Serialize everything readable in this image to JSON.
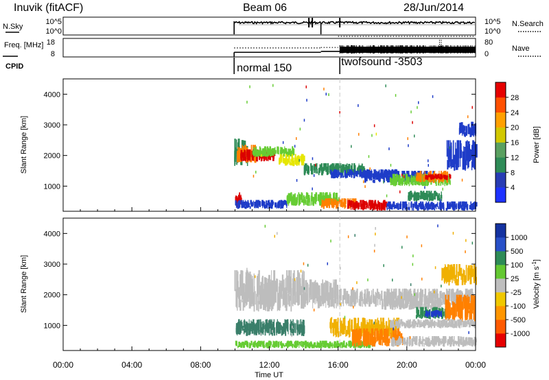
{
  "header": {
    "station": "Inuvik (fitACF)",
    "beam": "Beam 06",
    "date": "28/Jun/2014"
  },
  "colors": {
    "red": "#dc0000",
    "orange": "#ff8000",
    "amber": "#f0b000",
    "yellow": "#e6e600",
    "lightgreen": "#66cc33",
    "green": "#2e8b57",
    "teal": "#3a7f6a",
    "blue": "#1e3cc8",
    "navy": "#0a0aa8",
    "gray": "#bdbdbd"
  },
  "chart_data": [
    {
      "type": "line",
      "panel": "nsky",
      "ylabel": "N.Sky",
      "right_label": "N.Search",
      "y_ticks_left": [
        "10^5",
        "10^0"
      ],
      "y_ticks_right": [
        "10^5",
        "10^0"
      ],
      "xlim": [
        0,
        24
      ],
      "start_hour": 9.95,
      "end_hour": 24,
      "spikes_hours": [
        14.3,
        14.5,
        16.1
      ],
      "gap_hour": 15.0
    },
    {
      "type": "line",
      "panel": "freq",
      "ylabel": "Freq. [MHz]",
      "right_label": "Nave",
      "y_ticks_left": [
        "18",
        "8"
      ],
      "y_ticks_right": [
        "80",
        "0"
      ],
      "xlim": [
        0,
        24
      ],
      "freq_segments": [
        {
          "start": 9.95,
          "end": 15.0,
          "value": 10.5
        },
        {
          "start": 15.0,
          "end": 16.1,
          "value": 11.0
        },
        {
          "start": 16.1,
          "end": 24.0,
          "value": 10.5
        }
      ],
      "nave_segments": [
        {
          "start": 9.95,
          "end": 15.0,
          "value": 30
        },
        {
          "start": 15.0,
          "end": 16.0,
          "value": 32
        },
        {
          "start": 16.0,
          "end": 24.0,
          "value": 80
        }
      ],
      "dense_from_hour": 16.1
    },
    {
      "type": "table",
      "panel": "cpid",
      "label": "CPID",
      "programs": [
        {
          "name": "normal 150",
          "start_hour": 9.95
        },
        {
          "name": "twofsound -3503",
          "start_hour": 16.1
        }
      ],
      "divider_hour": 15.0
    },
    {
      "type": "heatmap",
      "panel": "power",
      "ylabel": "Slant Range [km]",
      "xlim": [
        0,
        24
      ],
      "ylim": [
        180,
        4500
      ],
      "y_ticks": [
        1000,
        2000,
        3000,
        4000
      ],
      "colorbar": {
        "label": "Power [dB]",
        "ticks": [
          "28",
          "24",
          "20",
          "16",
          "12",
          "8",
          "4"
        ],
        "colors": [
          "#1e32ff",
          "#283cb4",
          "#2e8b57",
          "#5aa060",
          "#d2c800",
          "#ffa000",
          "#ff5000",
          "#e60000"
        ]
      },
      "blobs": [
        {
          "t0": 9.95,
          "t1": 10.7,
          "r0": 1650,
          "r1": 2550,
          "c": "#2e8b57"
        },
        {
          "t0": 10.1,
          "t1": 11.2,
          "r0": 1750,
          "r1": 2350,
          "c": "#ff8000"
        },
        {
          "t0": 10.3,
          "t1": 12.3,
          "r0": 1800,
          "r1": 2200,
          "c": "#dc0000"
        },
        {
          "t0": 11.0,
          "t1": 13.5,
          "r0": 1950,
          "r1": 2300,
          "c": "#66cc33"
        },
        {
          "t0": 12.5,
          "t1": 14.0,
          "r0": 1650,
          "r1": 2050,
          "c": "#e6e600"
        },
        {
          "t0": 14.0,
          "t1": 17.5,
          "r0": 1350,
          "r1": 1750,
          "c": "#2e8b57"
        },
        {
          "t0": 15.5,
          "t1": 19.5,
          "r0": 1250,
          "r1": 1550,
          "c": "#1e3cc8"
        },
        {
          "t0": 17.5,
          "t1": 21.5,
          "r0": 1100,
          "r1": 1500,
          "c": "#1e3cc8"
        },
        {
          "t0": 19.0,
          "t1": 22.5,
          "r0": 1000,
          "r1": 1400,
          "c": "#66cc33"
        },
        {
          "t0": 20.5,
          "t1": 22.5,
          "r0": 1100,
          "r1": 1500,
          "c": "#ff8000"
        },
        {
          "t0": 21.0,
          "t1": 22.5,
          "r0": 1200,
          "r1": 1400,
          "c": "#dc0000"
        },
        {
          "t0": 22.3,
          "t1": 24.0,
          "r0": 1500,
          "r1": 2500,
          "c": "#1e3cc8"
        },
        {
          "t0": 23.0,
          "t1": 24.0,
          "r0": 2600,
          "r1": 3100,
          "c": "#1e3cc8"
        },
        {
          "t0": 9.95,
          "t1": 10.4,
          "r0": 250,
          "r1": 800,
          "c": "#dc0000"
        },
        {
          "t0": 10.0,
          "t1": 13.0,
          "r0": 250,
          "r1": 550,
          "c": "#1e3cc8"
        },
        {
          "t0": 13.0,
          "t1": 16.0,
          "r0": 350,
          "r1": 800,
          "c": "#66cc33"
        },
        {
          "t0": 15.0,
          "t1": 17.0,
          "r0": 250,
          "r1": 600,
          "c": "#ff8000"
        },
        {
          "t0": 16.5,
          "t1": 18.8,
          "r0": 200,
          "r1": 550,
          "c": "#dc0000"
        },
        {
          "t0": 18.8,
          "t1": 24.0,
          "r0": 200,
          "r1": 500,
          "c": "#1e3cc8"
        },
        {
          "t0": 20.0,
          "t1": 22.0,
          "r0": 500,
          "r1": 850,
          "c": "#2e8b57"
        }
      ]
    },
    {
      "type": "heatmap",
      "panel": "velocity",
      "ylabel": "Slant Range [km]",
      "xlabel": "Time UT",
      "xlim": [
        0,
        24
      ],
      "ylim": [
        180,
        4500
      ],
      "y_ticks": [
        1000,
        2000,
        3000,
        4000
      ],
      "x_ticks": [
        "00:00",
        "04:00",
        "08:00",
        "12:00",
        "16:00",
        "20:00",
        "00:00"
      ],
      "colorbar": {
        "label": "Velocity [m s^-1]",
        "ticks": [
          "1000",
          "500",
          "100",
          "25",
          "-25",
          "-100",
          "-500",
          "-1000"
        ],
        "colors": [
          "#e60000",
          "#ff5a00",
          "#ff9600",
          "#f0c800",
          "#bebebe",
          "#64c832",
          "#2e8b57",
          "#2850c8",
          "#1432a0"
        ]
      },
      "blobs": [
        {
          "t0": 9.95,
          "t1": 14.0,
          "r0": 1450,
          "r1": 2800,
          "c": "#bdbdbd"
        },
        {
          "t0": 14.0,
          "t1": 16.0,
          "r0": 1550,
          "r1": 2500,
          "c": "#bdbdbd"
        },
        {
          "t0": 16.0,
          "t1": 19.0,
          "r0": 1600,
          "r1": 2200,
          "c": "#bdbdbd"
        },
        {
          "t0": 19.0,
          "t1": 24.0,
          "r0": 1650,
          "r1": 2200,
          "c": "#bdbdbd"
        },
        {
          "t0": 10.0,
          "t1": 14.0,
          "r0": 650,
          "r1": 1200,
          "c": "#3a7f6a"
        },
        {
          "t0": 10.0,
          "t1": 16.0,
          "r0": 250,
          "r1": 500,
          "c": "#66cc33"
        },
        {
          "t0": 16.0,
          "t1": 18.0,
          "r0": 250,
          "r1": 500,
          "c": "#66cc33"
        },
        {
          "t0": 15.5,
          "t1": 19.5,
          "r0": 600,
          "r1": 1250,
          "c": "#f0b000"
        },
        {
          "t0": 16.8,
          "t1": 19.8,
          "r0": 300,
          "r1": 900,
          "c": "#ff8000"
        },
        {
          "t0": 18.5,
          "t1": 22.0,
          "r0": 1500,
          "r1": 1900,
          "c": "#bdbdbd"
        },
        {
          "t0": 20.5,
          "t1": 22.2,
          "r0": 1200,
          "r1": 1600,
          "c": "#2e8b57"
        },
        {
          "t0": 21.0,
          "t1": 22.0,
          "r0": 1250,
          "r1": 1500,
          "c": "#1e3cc8"
        },
        {
          "t0": 22.2,
          "t1": 24.0,
          "r0": 1100,
          "r1": 2000,
          "c": "#ff8000"
        },
        {
          "t0": 22.0,
          "t1": 24.0,
          "r0": 2300,
          "r1": 3000,
          "c": "#f0b000"
        },
        {
          "t0": 19.0,
          "t1": 24.0,
          "r0": 300,
          "r1": 650,
          "c": "#bdbdbd"
        },
        {
          "t0": 19.0,
          "t1": 24.0,
          "r0": 900,
          "r1": 1200,
          "c": "#bdbdbd"
        }
      ]
    }
  ]
}
